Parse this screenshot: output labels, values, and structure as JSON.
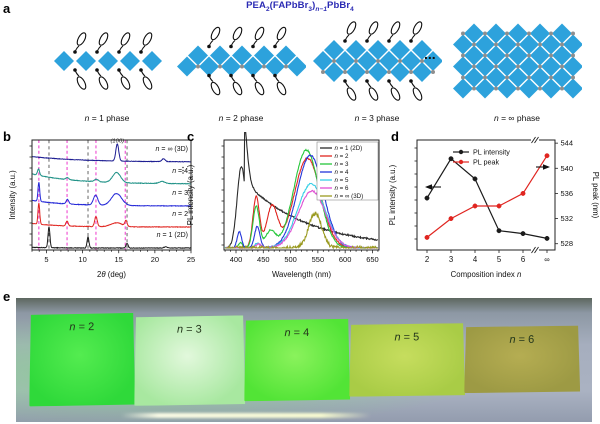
{
  "panel_letters": {
    "a": "a",
    "b": "b",
    "c": "c",
    "d": "d",
    "e": "e"
  },
  "panel_a": {
    "title_segments": [
      {
        "t": "PEA"
      },
      {
        "t": "2",
        "sub": true
      },
      {
        "t": "(FAPbBr"
      },
      {
        "t": "3",
        "sub": true
      },
      {
        "t": ")"
      },
      {
        "t": "n−1",
        "sub": true,
        "it": true
      },
      {
        "t": "PbBr"
      },
      {
        "t": "4",
        "sub": true
      }
    ],
    "title_color": "#2b2bb4",
    "diamond_color": "#2da2dc",
    "cation_color": "#8f8f8f",
    "dots_label": "...",
    "phases": [
      {
        "label": "n = 1 phase",
        "rows": 1,
        "ligands": true,
        "cations": false
      },
      {
        "label": "n = 2 phase",
        "rows": 2,
        "ligands": true,
        "cations": true
      },
      {
        "label": "n = 3 phase",
        "rows": 3,
        "ligands": true,
        "cations": true
      },
      {
        "label": "n = ∞ phase",
        "rows": 6,
        "ligands": false,
        "cations": true
      }
    ]
  },
  "chart_data": [
    {
      "id": "b",
      "type": "line",
      "kind": "xrd",
      "xlabel": "2θ (deg)",
      "ylabel": "Intensity (a.u.)",
      "xlim": [
        3,
        25
      ],
      "xticks": [
        5,
        10,
        15,
        20,
        25
      ],
      "guide_color_primary": "#ee35cc",
      "guide_color_secondary": "#555555",
      "guides_primary": [
        3.95,
        7.85,
        11.85,
        15.9
      ],
      "guides_secondary": [
        5.35,
        10.75,
        16.15
      ],
      "annotation": "(100)",
      "annotation_x": 14.8,
      "vdots": "⋮",
      "series": [
        {
          "label": "n = 1 (2D)",
          "color": "#1b1b1b",
          "decay": [
            0.03,
            3
          ],
          "peaks": [
            [
              5.35,
              0.95,
              0.13
            ],
            [
              10.75,
              0.5,
              0.13
            ],
            [
              16.15,
              0.2,
              0.15
            ],
            [
              21.5,
              0.06,
              0.2
            ]
          ]
        },
        {
          "label": "n = 2",
          "color": "#e02520",
          "decay": [
            0.18,
            4
          ],
          "peaks": [
            [
              3.95,
              1.05,
              0.12
            ],
            [
              7.85,
              0.25,
              0.15
            ],
            [
              11.85,
              0.5,
              0.18
            ],
            [
              14.7,
              0.2,
              0.8
            ],
            [
              16.0,
              0.28,
              0.15
            ]
          ]
        },
        {
          "label": "n = 3",
          "color": "#2428d8",
          "decay": [
            0.28,
            5
          ],
          "peaks": [
            [
              3.95,
              0.95,
              0.12
            ],
            [
              7.9,
              0.22,
              0.18
            ],
            [
              11.8,
              0.5,
              0.3
            ],
            [
              14.7,
              0.6,
              0.7
            ]
          ]
        },
        {
          "label": "n = 4",
          "color": "#1e9186",
          "decay": [
            0.5,
            6
          ],
          "peaks": [
            [
              3.9,
              0.32,
              0.15
            ],
            [
              7.9,
              0.1,
              0.2
            ],
            [
              11.9,
              0.12,
              0.3
            ],
            [
              14.7,
              0.5,
              0.55
            ],
            [
              21.0,
              0.1,
              0.4
            ]
          ]
        },
        {
          "label": "n = ∞ (3D)",
          "color": "#1d1d92",
          "decay": [
            0.3,
            7
          ],
          "peaks": [
            [
              14.8,
              0.95,
              0.2
            ],
            [
              21.2,
              0.16,
              0.22
            ]
          ]
        }
      ]
    },
    {
      "id": "c",
      "type": "line",
      "kind": "pl",
      "xlabel": "Wavelength (nm)",
      "ylabel": "PL intensity (a.u.)",
      "xlim": [
        378,
        662
      ],
      "xticks": [
        400,
        450,
        500,
        550,
        600,
        650
      ],
      "legend_position": "top-right",
      "series": [
        {
          "label": "n = 1 (2D)",
          "color": "#2b2b2b",
          "peaks": [
            [
              410,
              0.8,
              8
            ]
          ],
          "tail": [
            415,
            0.66,
            115
          ]
        },
        {
          "label": "n = 2",
          "color": "#e02520",
          "peaks": [
            [
              437,
              0.5,
              6
            ],
            [
              466,
              0.4,
              10
            ],
            [
              531,
              0.88,
              24
            ]
          ]
        },
        {
          "label": "n = 3",
          "color": "#27c73b",
          "peaks": [
            [
              408,
              0.05,
              4
            ],
            [
              437,
              0.41,
              6
            ],
            [
              463,
              0.16,
              9
            ],
            [
              529,
              0.96,
              23
            ]
          ]
        },
        {
          "label": "n = 4",
          "color": "#2436da",
          "peaks": [
            [
              406,
              0.16,
              4
            ],
            [
              439,
              0.21,
              5
            ],
            [
              536,
              0.91,
              24
            ]
          ]
        },
        {
          "label": "n = 5",
          "color": "#38d0e6",
          "peaks": [
            [
              440,
              0.05,
              5
            ],
            [
              538,
              0.63,
              25
            ]
          ]
        },
        {
          "label": "n = 6",
          "color": "#e052d4",
          "peaks": [
            [
              441,
              0.04,
              5
            ],
            [
              539,
              0.56,
              25
            ]
          ]
        },
        {
          "label": "n = ∞ (3D)",
          "color": "#9a9a20",
          "peaks": [
            [
              545,
              0.34,
              12
            ]
          ],
          "noise": 0.02
        }
      ]
    },
    {
      "id": "d",
      "type": "line",
      "kind": "trends",
      "xlabel": "Composition index n",
      "ylabel_left": "PL intensity (a.u.)",
      "ylabel_right": "PL peak (nm)",
      "categories": [
        "2",
        "3",
        "4",
        "5",
        "6",
        "∞"
      ],
      "yticks_right": [
        528,
        532,
        536,
        540,
        544
      ],
      "ylim_right": [
        527,
        544.5
      ],
      "series": [
        {
          "name": "PL intensity",
          "axis": "left",
          "color": "#1b1b1b",
          "values": [
            0.52,
            0.93,
            0.72,
            0.18,
            0.15,
            0.1
          ]
        },
        {
          "name": "PL peak",
          "axis": "right",
          "color": "#e02520",
          "values": [
            529,
            532,
            534,
            534,
            536,
            542
          ]
        }
      ]
    }
  ],
  "panel_e": {
    "samples": [
      {
        "label": "n = 2",
        "color1": "#54ec50",
        "color2": "#2fd93a",
        "glow": "rgba(80,255,90,0.75)"
      },
      {
        "label": "n = 3",
        "color1": "#e2f8dc",
        "color2": "#a8e8a0",
        "glow": "rgba(160,255,160,0.8)"
      },
      {
        "label": "n = 4",
        "color1": "#8af25c",
        "color2": "#52e436",
        "glow": "rgba(110,255,80,0.8)"
      },
      {
        "label": "n = 5",
        "color1": "#c6dd5e",
        "color2": "#a9cc46",
        "glow": "rgba(170,210,70,0.35)"
      },
      {
        "label": "n = 6",
        "color1": "#b5ad52",
        "color2": "#9d9a44",
        "glow": "rgba(150,150,60,0.25)"
      }
    ]
  }
}
